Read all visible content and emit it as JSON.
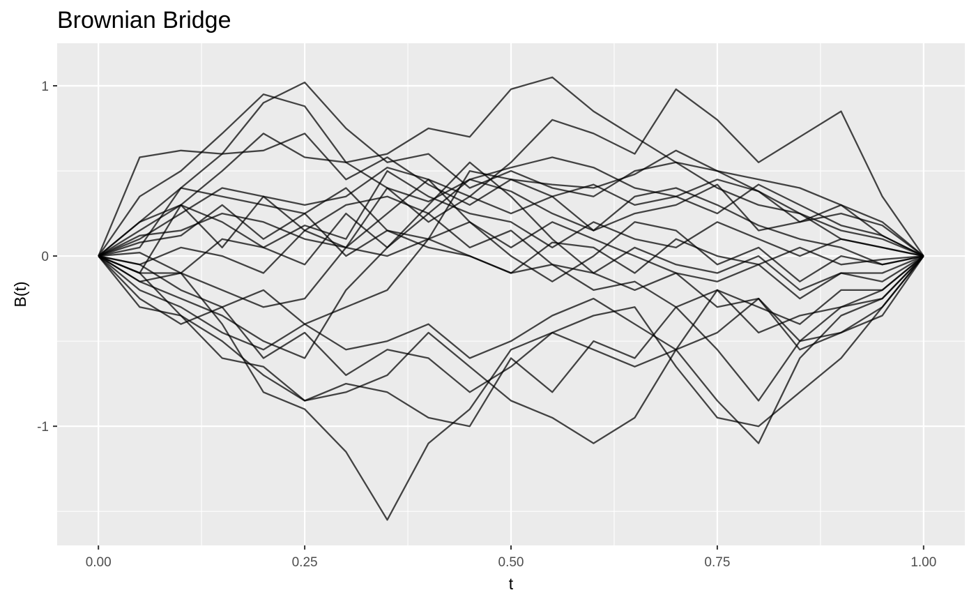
{
  "chart_data": {
    "type": "line",
    "title": "Brownian Bridge",
    "xlabel": "t",
    "ylabel": "B(t)",
    "xlim": [
      -0.05,
      1.05
    ],
    "ylim": [
      -1.7,
      1.25
    ],
    "x_ticks": [
      0.0,
      0.25,
      0.5,
      0.75,
      1.0
    ],
    "x_tick_labels": [
      "0.00",
      "0.25",
      "0.50",
      "0.75",
      "1.00"
    ],
    "y_ticks": [
      -1,
      0,
      1
    ],
    "y_tick_labels": [
      "-1",
      "0",
      "1"
    ],
    "grid": true,
    "legend": "none",
    "line_color": "#000000",
    "panel_background": "#ebebeb",
    "grid_color": "#ffffff",
    "x": [
      0.0,
      0.05,
      0.1,
      0.15,
      0.2,
      0.25,
      0.3,
      0.35,
      0.4,
      0.45,
      0.5,
      0.55,
      0.6,
      0.65,
      0.7,
      0.75,
      0.8,
      0.85,
      0.9,
      0.95,
      1.0
    ],
    "series": [
      {
        "values": [
          0,
          0.58,
          0.62,
          0.6,
          0.62,
          0.72,
          0.45,
          0.58,
          0.42,
          0.3,
          0.45,
          0.35,
          0.42,
          0.3,
          0.35,
          0.25,
          0.42,
          0.3,
          0.18,
          0.12,
          0
        ]
      },
      {
        "values": [
          0,
          0.35,
          0.5,
          0.72,
          0.95,
          0.88,
          0.55,
          0.4,
          0.32,
          0.45,
          0.38,
          0.25,
          0.15,
          0.35,
          0.4,
          0.3,
          0.18,
          0.1,
          0.05,
          -0.05,
          0
        ]
      },
      {
        "values": [
          0,
          0.2,
          0.4,
          0.6,
          0.9,
          1.02,
          0.75,
          0.55,
          0.6,
          0.4,
          0.5,
          0.4,
          0.35,
          0.5,
          0.55,
          0.4,
          0.3,
          0.25,
          0.15,
          0.1,
          0
        ]
      },
      {
        "values": [
          0,
          0.15,
          0.3,
          0.5,
          0.72,
          0.58,
          0.55,
          0.6,
          0.75,
          0.7,
          0.98,
          1.05,
          0.85,
          0.7,
          0.55,
          0.5,
          0.38,
          0.25,
          0.1,
          0.05,
          0
        ]
      },
      {
        "values": [
          0,
          0.1,
          0.25,
          0.4,
          0.35,
          0.3,
          0.35,
          0.52,
          0.45,
          0.35,
          0.55,
          0.8,
          0.72,
          0.6,
          0.98,
          0.8,
          0.55,
          0.7,
          0.85,
          0.35,
          0
        ]
      },
      {
        "values": [
          0,
          0.05,
          0.4,
          0.35,
          0.3,
          0.25,
          0.4,
          0.15,
          0.1,
          0.5,
          0.45,
          0.42,
          0.4,
          0.48,
          0.62,
          0.5,
          0.45,
          0.4,
          0.3,
          0.2,
          0
        ]
      },
      {
        "values": [
          0,
          0.2,
          0.3,
          0.05,
          0.35,
          0.15,
          0.3,
          0.35,
          0.25,
          0.45,
          0.52,
          0.58,
          0.52,
          0.4,
          0.35,
          0.45,
          0.38,
          0.2,
          0.25,
          0.18,
          0
        ]
      },
      {
        "values": [
          0,
          0.12,
          0.15,
          0.25,
          0.2,
          0.1,
          0.05,
          0.4,
          0.2,
          0.35,
          0.25,
          0.35,
          0.15,
          0.25,
          0.3,
          0.42,
          0.15,
          0.2,
          0.3,
          0.12,
          0
        ]
      },
      {
        "values": [
          0,
          -0.1,
          0.3,
          0.2,
          0.05,
          0.18,
          0.1,
          0.5,
          0.35,
          0.25,
          0.2,
          0.05,
          0.2,
          0.1,
          0.05,
          0.2,
          0.1,
          0.0,
          0.1,
          0.05,
          0
        ]
      },
      {
        "values": [
          0,
          0.08,
          0.12,
          0.3,
          0.1,
          0.25,
          0.0,
          0.15,
          0.05,
          0.0,
          -0.1,
          0.08,
          0.05,
          -0.1,
          0.1,
          0.0,
          -0.05,
          0.05,
          -0.05,
          -0.02,
          0
        ]
      },
      {
        "values": [
          0,
          -0.05,
          0.05,
          0.0,
          -0.1,
          0.15,
          0.05,
          0.0,
          0.1,
          0.2,
          0.0,
          -0.15,
          0.0,
          0.2,
          0.15,
          -0.05,
          0.05,
          -0.15,
          0.0,
          -0.05,
          0
        ]
      },
      {
        "values": [
          0,
          0.02,
          -0.1,
          0.1,
          0.05,
          -0.05,
          0.25,
          0.05,
          0.25,
          0.05,
          0.15,
          -0.05,
          -0.1,
          0.05,
          -0.05,
          -0.1,
          0.0,
          -0.2,
          -0.1,
          -0.1,
          0
        ]
      },
      {
        "values": [
          0,
          -0.1,
          -0.1,
          -0.2,
          -0.3,
          -0.25,
          0.05,
          0.25,
          0.45,
          0.2,
          0.05,
          0.2,
          0.1,
          0.0,
          -0.1,
          -0.15,
          -0.05,
          -0.25,
          -0.1,
          -0.15,
          0
        ]
      },
      {
        "values": [
          0,
          -0.05,
          -0.2,
          -0.3,
          -0.2,
          -0.4,
          -0.3,
          -0.2,
          0.1,
          0.0,
          -0.1,
          -0.05,
          -0.2,
          -0.15,
          -0.3,
          -0.2,
          -0.3,
          -0.4,
          -0.2,
          -0.2,
          0
        ]
      },
      {
        "values": [
          0,
          -0.15,
          -0.25,
          -0.35,
          -0.5,
          -0.6,
          -0.2,
          0.05,
          0.3,
          0.55,
          0.35,
          0.1,
          -0.1,
          -0.2,
          -0.1,
          -0.3,
          -0.25,
          -0.5,
          -0.45,
          -0.35,
          0
        ]
      },
      {
        "values": [
          0,
          -0.2,
          -0.3,
          -0.45,
          -0.55,
          -0.4,
          -0.55,
          -0.5,
          -0.4,
          -0.6,
          -0.5,
          -0.35,
          -0.25,
          -0.4,
          -0.55,
          -0.2,
          -0.45,
          -0.35,
          -0.3,
          -0.25,
          0
        ]
      },
      {
        "values": [
          0,
          -0.25,
          -0.4,
          -0.3,
          -0.6,
          -0.45,
          -0.7,
          -0.55,
          -0.6,
          -0.8,
          -0.65,
          -0.45,
          -0.55,
          -0.65,
          -0.55,
          -0.45,
          -0.25,
          -0.55,
          -0.45,
          -0.3,
          0
        ]
      },
      {
        "values": [
          0,
          -0.3,
          -0.35,
          -0.5,
          -0.7,
          -0.85,
          -0.75,
          -0.8,
          -0.95,
          -1.0,
          -0.6,
          -0.8,
          -0.5,
          -0.6,
          -0.3,
          -0.55,
          -0.85,
          -0.5,
          -0.3,
          -0.2,
          0
        ]
      },
      {
        "values": [
          0,
          -0.15,
          -0.1,
          -0.4,
          -0.8,
          -0.9,
          -1.15,
          -1.55,
          -1.1,
          -0.9,
          -0.55,
          -0.45,
          -0.35,
          -0.3,
          -0.65,
          -0.95,
          -1.0,
          -0.8,
          -0.6,
          -0.3,
          0
        ]
      },
      {
        "values": [
          0,
          -0.1,
          -0.35,
          -0.6,
          -0.65,
          -0.85,
          -0.8,
          -0.7,
          -0.45,
          -0.65,
          -0.85,
          -0.95,
          -1.1,
          -0.95,
          -0.55,
          -0.85,
          -1.1,
          -0.6,
          -0.35,
          -0.25,
          0
        ]
      }
    ]
  }
}
